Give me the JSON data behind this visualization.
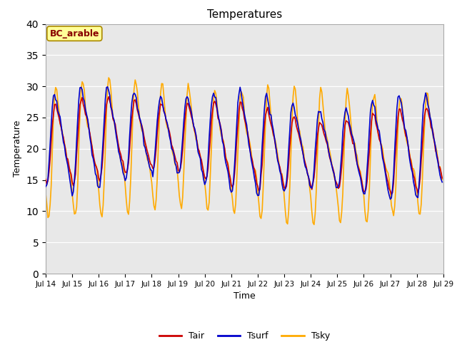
{
  "title": "Temperatures",
  "xlabel": "Time",
  "ylabel": "Temperature",
  "annotation": "BC_arable",
  "ylim": [
    0,
    40
  ],
  "yticks": [
    0,
    5,
    10,
    15,
    20,
    25,
    30,
    35,
    40
  ],
  "line_colors": {
    "Tair": "#cc0000",
    "Tsurf": "#0000cc",
    "Tsky": "#ffaa00"
  },
  "legend_labels": [
    "Tair",
    "Tsurf",
    "Tsky"
  ],
  "bg_color": "#e8e8e8",
  "fig_bg": "#ffffff",
  "annotation_bg": "#ffff99",
  "annotation_edge": "#aa8800",
  "annotation_text_color": "#880000",
  "start_day": 14,
  "end_day": 29,
  "hours_per_day": 24,
  "dt_hours": 1.0
}
